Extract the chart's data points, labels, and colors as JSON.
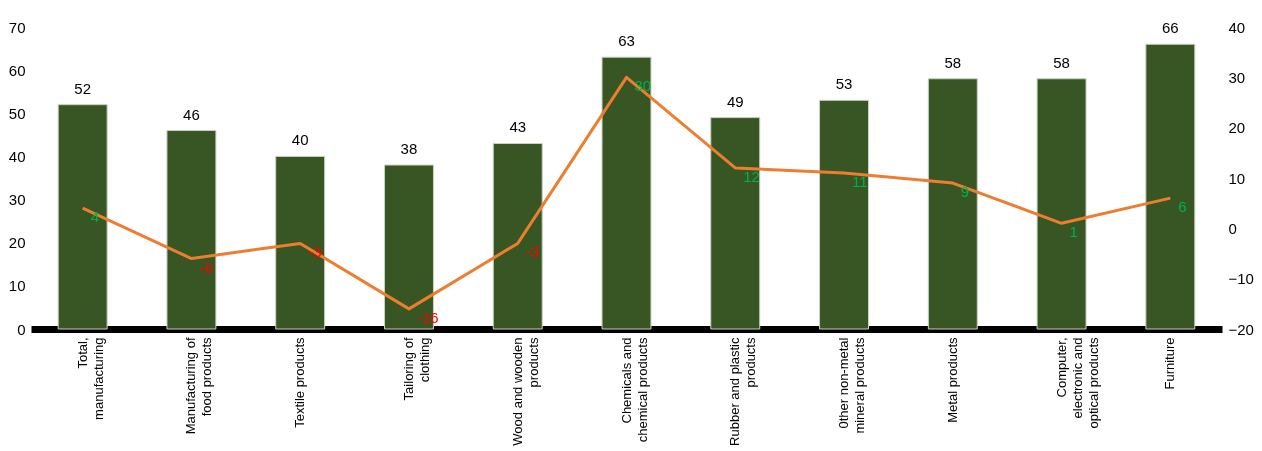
{
  "chart_data": {
    "type": "bar",
    "categories": [
      "Total, manufacturing",
      "Manufacturing of food products",
      "Textile products",
      "Tailoring of clothing",
      "Wood and wooden products",
      "Chemicals and chemical products",
      "Rubber and plastic products",
      "0ther non-metal mineral products",
      "Metal products",
      "Computer, electronic and optical products",
      "Furniture"
    ],
    "series": [
      {
        "color": "#375623",
        "values": [
          52,
          46,
          40,
          38,
          43,
          63,
          49,
          53,
          58,
          58,
          66
        ]
      },
      {
        "type": "line",
        "color": "#ed7d31",
        "axis": "y2",
        "values": [
          4,
          -6,
          -3,
          -16,
          -3,
          30,
          12,
          11,
          9,
          1,
          6
        ]
      }
    ],
    "ylim": [
      0,
      70
    ],
    "yticks": [
      0,
      10,
      20,
      30,
      40,
      50,
      60,
      70
    ],
    "y2lim": [
      -20,
      40
    ],
    "y2ticks": [
      -20,
      -10,
      0,
      10,
      20,
      30,
      40
    ],
    "data_labels": true,
    "grid": false
  }
}
